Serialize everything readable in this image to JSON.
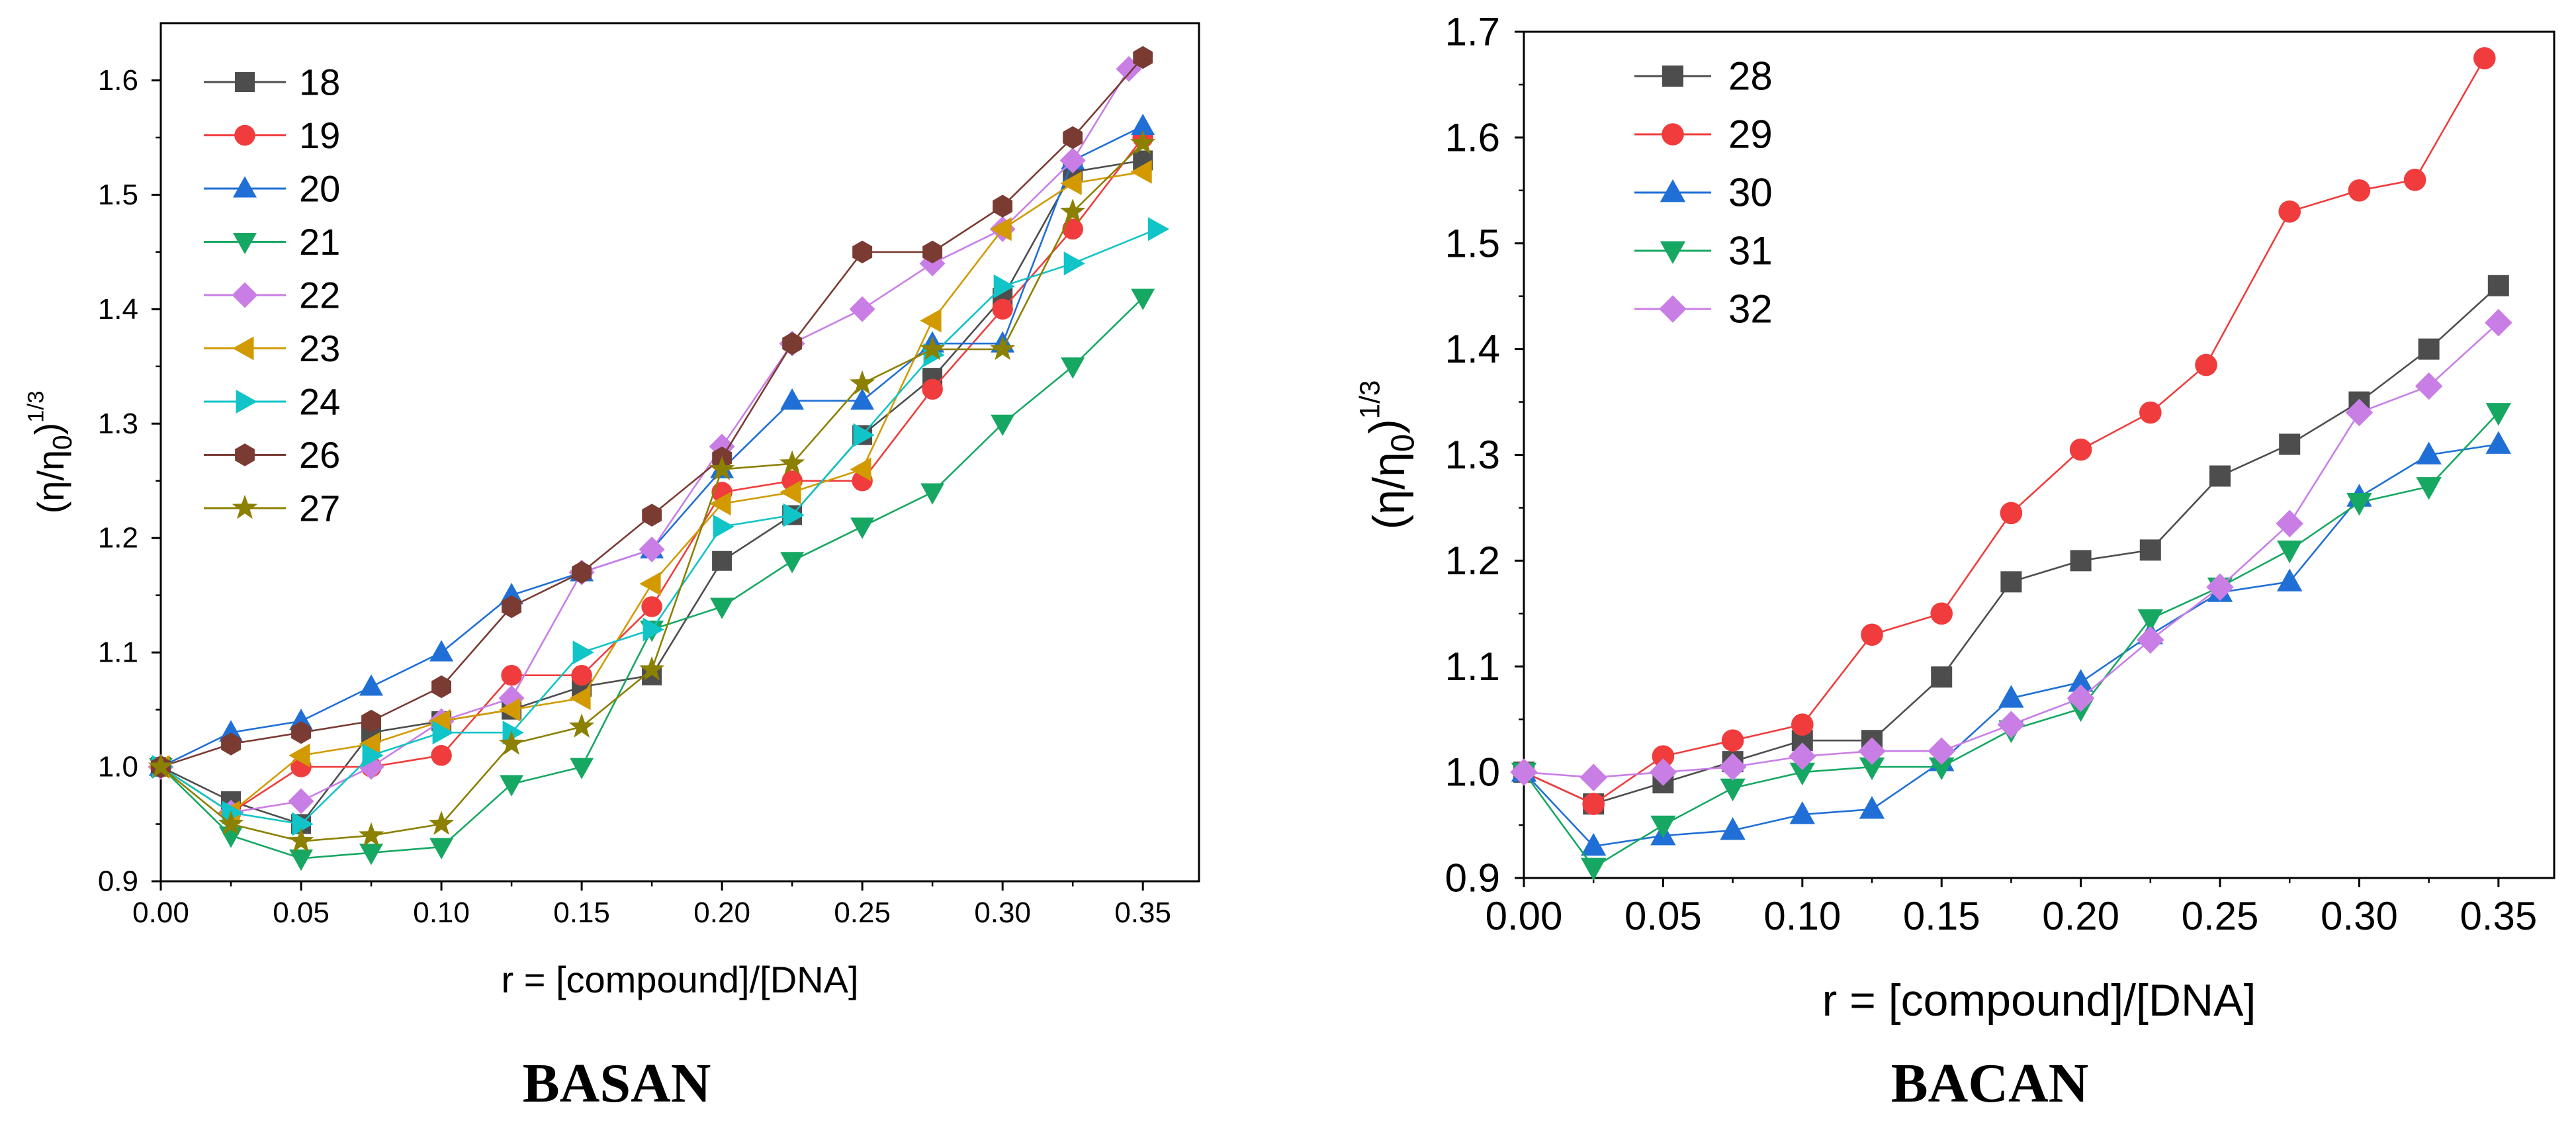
{
  "chart_data": [
    {
      "type": "line",
      "caption": "BASAN",
      "xlabel": "r = [compound]/[DNA]",
      "ylabel_base": "(η/η",
      "ylabel_sub": "0",
      "ylabel_tail": ")",
      "ylabel_sup": "1/3",
      "xlim": [
        0,
        0.37
      ],
      "ylim": [
        0.9,
        1.65
      ],
      "xticks": [
        0.0,
        0.05,
        0.1,
        0.15,
        0.2,
        0.25,
        0.3,
        0.35
      ],
      "xtick_labels": [
        "0.00",
        "0.05",
        "0.10",
        "0.15",
        "0.20",
        "0.25",
        "0.30",
        "0.35"
      ],
      "yticks": [
        0.9,
        1.0,
        1.1,
        1.2,
        1.3,
        1.4,
        1.5,
        1.6
      ],
      "ytick_labels": [
        "0.9",
        "1.0",
        "1.1",
        "1.2",
        "1.3",
        "1.4",
        "1.5",
        "1.6"
      ],
      "legend_position": "top-left",
      "series": [
        {
          "name": "18",
          "color": "#4d4d4d",
          "marker": "square",
          "x": [
            0,
            0.025,
            0.05,
            0.075,
            0.1,
            0.125,
            0.15,
            0.175,
            0.2,
            0.225,
            0.25,
            0.275,
            0.3,
            0.325,
            0.35
          ],
          "y": [
            1.0,
            0.97,
            0.95,
            1.03,
            1.04,
            1.05,
            1.07,
            1.08,
            1.18,
            1.22,
            1.29,
            1.34,
            1.41,
            1.52,
            1.53
          ]
        },
        {
          "name": "19",
          "color": "#f03c3c",
          "marker": "circle",
          "x": [
            0,
            0.025,
            0.05,
            0.075,
            0.1,
            0.125,
            0.15,
            0.175,
            0.2,
            0.225,
            0.25,
            0.275,
            0.3,
            0.325,
            0.35
          ],
          "y": [
            1.0,
            0.96,
            1.0,
            1.0,
            1.01,
            1.08,
            1.08,
            1.14,
            1.24,
            1.25,
            1.25,
            1.33,
            1.4,
            1.47,
            1.55
          ]
        },
        {
          "name": "20",
          "color": "#1f6fd6",
          "marker": "triangle-up",
          "x": [
            0,
            0.025,
            0.05,
            0.075,
            0.1,
            0.125,
            0.15,
            0.175,
            0.2,
            0.225,
            0.25,
            0.275,
            0.3,
            0.325,
            0.35
          ],
          "y": [
            1.0,
            1.03,
            1.04,
            1.07,
            1.1,
            1.15,
            1.17,
            1.19,
            1.26,
            1.32,
            1.32,
            1.37,
            1.37,
            1.53,
            1.56
          ]
        },
        {
          "name": "21",
          "color": "#16a862",
          "marker": "triangle-down",
          "x": [
            0,
            0.025,
            0.05,
            0.075,
            0.1,
            0.125,
            0.15,
            0.175,
            0.2,
            0.225,
            0.25,
            0.275,
            0.3,
            0.325,
            0.35
          ],
          "y": [
            1.0,
            0.94,
            0.92,
            0.925,
            0.93,
            0.985,
            1.0,
            1.12,
            1.14,
            1.18,
            1.21,
            1.24,
            1.3,
            1.35,
            1.41
          ]
        },
        {
          "name": "22",
          "color": "#c97ee6",
          "marker": "diamond",
          "x": [
            0,
            0.025,
            0.05,
            0.075,
            0.1,
            0.125,
            0.15,
            0.175,
            0.2,
            0.225,
            0.25,
            0.275,
            0.3,
            0.325,
            0.345
          ],
          "y": [
            1.0,
            0.96,
            0.97,
            1.0,
            1.04,
            1.06,
            1.17,
            1.19,
            1.28,
            1.37,
            1.4,
            1.44,
            1.47,
            1.53,
            1.61
          ]
        },
        {
          "name": "23",
          "color": "#d29a00",
          "marker": "triangle-left",
          "x": [
            0,
            0.025,
            0.05,
            0.075,
            0.1,
            0.125,
            0.15,
            0.175,
            0.2,
            0.225,
            0.25,
            0.275,
            0.3,
            0.325,
            0.35
          ],
          "y": [
            1.0,
            0.96,
            1.01,
            1.02,
            1.04,
            1.05,
            1.06,
            1.16,
            1.23,
            1.24,
            1.26,
            1.39,
            1.47,
            1.51,
            1.52
          ]
        },
        {
          "name": "24",
          "color": "#10c4c8",
          "marker": "triangle-right",
          "x": [
            0,
            0.025,
            0.05,
            0.075,
            0.1,
            0.125,
            0.15,
            0.175,
            0.2,
            0.225,
            0.25,
            0.275,
            0.3,
            0.325,
            0.355
          ],
          "y": [
            1.0,
            0.96,
            0.95,
            1.01,
            1.03,
            1.03,
            1.1,
            1.12,
            1.21,
            1.22,
            1.29,
            1.36,
            1.42,
            1.44,
            1.47
          ]
        },
        {
          "name": "26",
          "color": "#7a3b32",
          "marker": "hexagon",
          "x": [
            0,
            0.025,
            0.05,
            0.075,
            0.1,
            0.125,
            0.15,
            0.175,
            0.2,
            0.225,
            0.25,
            0.275,
            0.3,
            0.325,
            0.35
          ],
          "y": [
            1.0,
            1.02,
            1.03,
            1.04,
            1.07,
            1.14,
            1.17,
            1.22,
            1.27,
            1.37,
            1.45,
            1.45,
            1.49,
            1.55,
            1.62
          ]
        },
        {
          "name": "27",
          "color": "#8b8000",
          "marker": "star",
          "x": [
            0,
            0.025,
            0.05,
            0.075,
            0.1,
            0.125,
            0.15,
            0.175,
            0.2,
            0.225,
            0.25,
            0.275,
            0.3,
            0.325,
            0.35
          ],
          "y": [
            1.0,
            0.95,
            0.935,
            0.94,
            0.95,
            1.02,
            1.035,
            1.085,
            1.26,
            1.265,
            1.335,
            1.365,
            1.365,
            1.485,
            1.545
          ]
        }
      ]
    },
    {
      "type": "line",
      "caption": "BACAN",
      "xlabel": "r = [compound]/[DNA]",
      "ylabel_base": "(η/η",
      "ylabel_sub": "0",
      "ylabel_tail": ")",
      "ylabel_sup": "1/3",
      "xlim": [
        0,
        0.37
      ],
      "ylim": [
        0.9,
        1.7
      ],
      "xticks": [
        0.0,
        0.05,
        0.1,
        0.15,
        0.2,
        0.25,
        0.3,
        0.35
      ],
      "xtick_labels": [
        "0.00",
        "0.05",
        "0.10",
        "0.15",
        "0.20",
        "0.25",
        "0.30",
        "0.35"
      ],
      "yticks": [
        0.9,
        1.0,
        1.1,
        1.2,
        1.3,
        1.4,
        1.5,
        1.6,
        1.7
      ],
      "ytick_labels": [
        "0.9",
        "1.0",
        "1.1",
        "1.2",
        "1.3",
        "1.4",
        "1.5",
        "1.6",
        "1.7"
      ],
      "legend_position": "top-left",
      "series": [
        {
          "name": "28",
          "color": "#4d4d4d",
          "marker": "square",
          "x": [
            0,
            0.025,
            0.05,
            0.075,
            0.1,
            0.125,
            0.15,
            0.175,
            0.2,
            0.225,
            0.25,
            0.275,
            0.3,
            0.325,
            0.35
          ],
          "y": [
            1.0,
            0.97,
            0.99,
            1.01,
            1.03,
            1.03,
            1.09,
            1.18,
            1.2,
            1.21,
            1.28,
            1.31,
            1.35,
            1.4,
            1.46
          ]
        },
        {
          "name": "29",
          "color": "#f03c3c",
          "marker": "circle",
          "x": [
            0,
            0.025,
            0.05,
            0.075,
            0.1,
            0.125,
            0.15,
            0.175,
            0.2,
            0.225,
            0.245,
            0.275,
            0.3,
            0.32,
            0.345
          ],
          "y": [
            1.0,
            0.97,
            1.015,
            1.03,
            1.045,
            1.13,
            1.15,
            1.245,
            1.305,
            1.34,
            1.385,
            1.53,
            1.55,
            1.56,
            1.675
          ]
        },
        {
          "name": "30",
          "color": "#1f6fd6",
          "marker": "triangle-up",
          "x": [
            0,
            0.025,
            0.05,
            0.075,
            0.1,
            0.125,
            0.15,
            0.175,
            0.2,
            0.225,
            0.25,
            0.275,
            0.3,
            0.325,
            0.35
          ],
          "y": [
            1.0,
            0.93,
            0.94,
            0.945,
            0.96,
            0.965,
            1.01,
            1.07,
            1.085,
            1.13,
            1.17,
            1.18,
            1.26,
            1.3,
            1.31
          ]
        },
        {
          "name": "31",
          "color": "#16a862",
          "marker": "triangle-down",
          "x": [
            0,
            0.025,
            0.05,
            0.075,
            0.1,
            0.125,
            0.15,
            0.175,
            0.2,
            0.225,
            0.25,
            0.275,
            0.3,
            0.325,
            0.35
          ],
          "y": [
            1.0,
            0.91,
            0.95,
            0.985,
            1.0,
            1.005,
            1.005,
            1.04,
            1.06,
            1.145,
            1.175,
            1.21,
            1.255,
            1.27,
            1.34
          ]
        },
        {
          "name": "32",
          "color": "#c97ee6",
          "marker": "diamond",
          "x": [
            0,
            0.025,
            0.05,
            0.075,
            0.1,
            0.125,
            0.15,
            0.175,
            0.2,
            0.225,
            0.25,
            0.275,
            0.3,
            0.325,
            0.35
          ],
          "y": [
            1.0,
            0.995,
            1.0,
            1.005,
            1.015,
            1.02,
            1.02,
            1.045,
            1.07,
            1.125,
            1.175,
            1.235,
            1.34,
            1.365,
            1.425
          ]
        }
      ]
    }
  ]
}
